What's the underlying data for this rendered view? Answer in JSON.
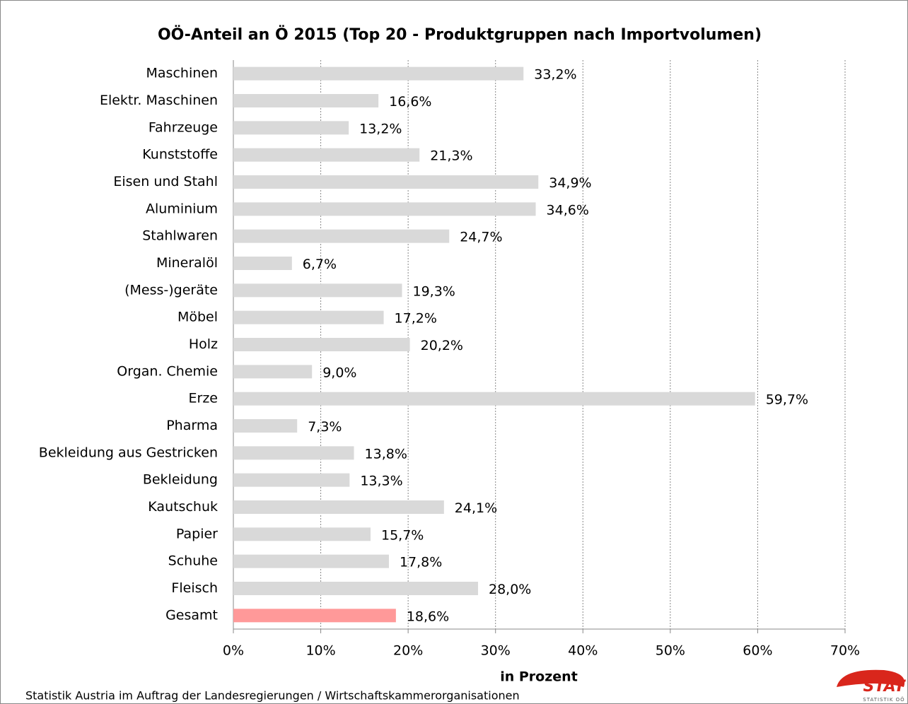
{
  "chart_data": {
    "type": "hbar",
    "title": "OÖ-Anteil an Ö 2015 (Top 20 - Produktgruppen nach Importvolumen)",
    "categories": [
      "Maschinen",
      "Elektr. Maschinen",
      "Fahrzeuge",
      "Kunststoffe",
      "Eisen und Stahl",
      "Aluminium",
      "Stahlwaren",
      "Mineralöl",
      "(Mess-)geräte",
      "Möbel",
      "Holz",
      "Organ. Chemie",
      "Erze",
      "Pharma",
      "Bekleidung aus Gestricken",
      "Bekleidung",
      "Kautschuk",
      "Papier",
      "Schuhe",
      "Fleisch",
      "Gesamt"
    ],
    "values": [
      33.2,
      16.6,
      13.2,
      21.3,
      34.9,
      34.6,
      24.7,
      6.7,
      19.3,
      17.2,
      20.2,
      9.0,
      59.7,
      7.3,
      13.8,
      13.3,
      24.1,
      15.7,
      17.8,
      28.0,
      18.6
    ],
    "value_labels": [
      "33,2%",
      "16,6%",
      "13,2%",
      "21,3%",
      "34,9%",
      "34,6%",
      "24,7%",
      "6,7%",
      "19,3%",
      "17,2%",
      "20,2%",
      "9,0%",
      "59,7%",
      "7,3%",
      "13,8%",
      "13,3%",
      "24,1%",
      "15,7%",
      "17,8%",
      "28,0%",
      "18,6%"
    ],
    "colors": [
      "#d9d9d9",
      "#d9d9d9",
      "#d9d9d9",
      "#d9d9d9",
      "#d9d9d9",
      "#d9d9d9",
      "#d9d9d9",
      "#d9d9d9",
      "#d9d9d9",
      "#d9d9d9",
      "#d9d9d9",
      "#d9d9d9",
      "#d9d9d9",
      "#d9d9d9",
      "#d9d9d9",
      "#d9d9d9",
      "#d9d9d9",
      "#d9d9d9",
      "#d9d9d9",
      "#d9d9d9",
      "#ff9999"
    ],
    "xlim": [
      0,
      70
    ],
    "xticks": [
      {
        "value": 0,
        "label": "0%"
      },
      {
        "value": 10,
        "label": "10%"
      },
      {
        "value": 20,
        "label": "20%"
      },
      {
        "value": 30,
        "label": "30%"
      },
      {
        "value": 40,
        "label": "40%"
      },
      {
        "value": 50,
        "label": "50%"
      },
      {
        "value": 60,
        "label": "60%"
      },
      {
        "value": 70,
        "label": "70%"
      }
    ],
    "x_label": "in Prozent",
    "grid": true,
    "source": "Statistik Austria im Auftrag der Landesregierungen / Wirtschaftskammerorganisationen",
    "logo": {
      "text": "STAT",
      "subtext": "STATISTIK OÖ"
    }
  }
}
